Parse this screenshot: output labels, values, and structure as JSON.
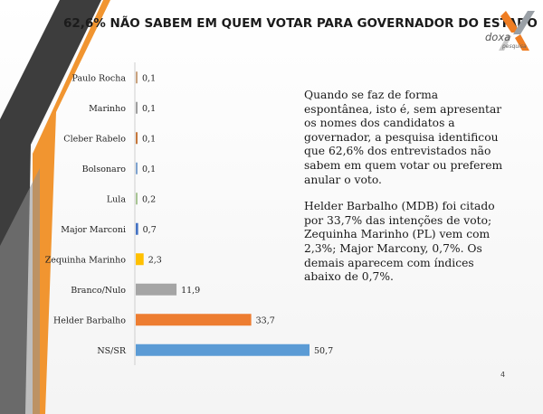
{
  "slide": {
    "title": "62,6% NÃO SABEM EM QUEM VOTAR PARA GOVERNADOR DO ESTADO",
    "page_number": "4"
  },
  "logo": {
    "name": "doxa",
    "subtitle": "pesquisa",
    "colors": [
      "#ef7d22",
      "#9aa0a6"
    ]
  },
  "note": {
    "paragraph1": "Quando se faz de forma espontânea, isto é, sem apresentar os nomes dos candidatos a governador, a pesquisa identificou que 62,6% dos entrevistados não sabem em quem votar ou preferem anular o voto.",
    "paragraph2": "Helder Barbalho (MDB) foi citado por 33,7% das intenções de voto; Zequinha Marinho (PL) vem com 2,3%; Major Marcony, 0,7%. Os demais aparecem com índices abaixo de 0,7%."
  },
  "chart_data": {
    "type": "bar",
    "orientation": "horizontal",
    "categories": [
      "Paulo Rocha",
      "Marinho",
      "Cleber Rabelo",
      "Bolsonaro",
      "Lula",
      "Major Marconi",
      "Zequinha Marinho",
      "Branco/Nulo",
      "Helder Barbalho",
      "NS/SR"
    ],
    "values": [
      0.1,
      0.1,
      0.1,
      0.1,
      0.2,
      0.7,
      2.3,
      11.9,
      33.7,
      50.7
    ],
    "value_labels": [
      "0,1",
      "0,1",
      "0,1",
      "0,1",
      "0,2",
      "0,7",
      "2,3",
      "11,9",
      "33,7",
      "50,7"
    ],
    "colors": [
      "#c9a27e",
      "#9e9e9e",
      "#c6773b",
      "#7fa3cf",
      "#a8c594",
      "#4472c4",
      "#ffc000",
      "#a5a5a5",
      "#ed7d31",
      "#5b9bd5"
    ],
    "xlim": [
      0,
      50.7
    ],
    "grid": false,
    "legend": "none"
  }
}
